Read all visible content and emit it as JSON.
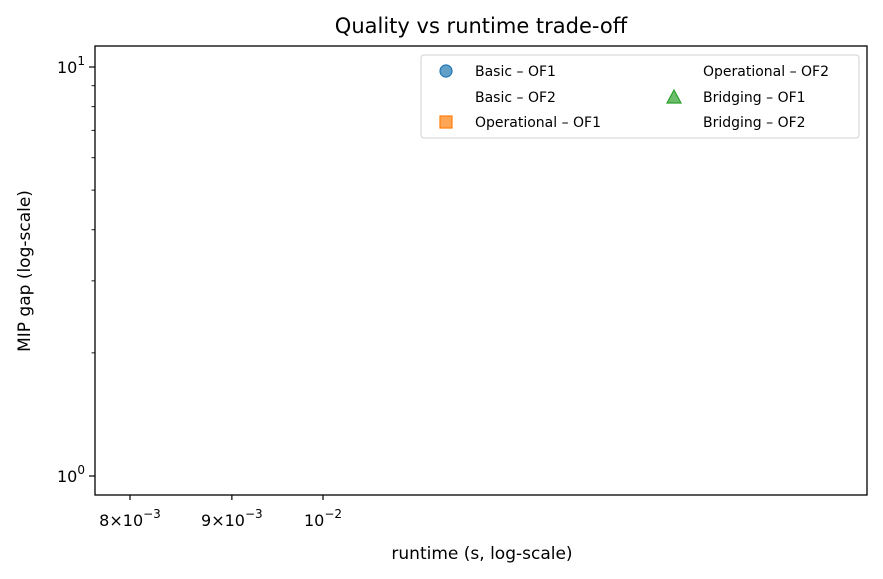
{
  "chart_data": {
    "type": "scatter",
    "title": "Quality vs runtime trade-off",
    "xlabel": "runtime (s, log-scale)",
    "ylabel": "MIP gap (log-scale)",
    "xscale": "log",
    "yscale": "log",
    "grid": false,
    "legend_location": "upper-right",
    "legend_columns": 2,
    "x_ticks": [
      {
        "value": 0.008,
        "mantissa": "8",
        "exponent": "−3"
      },
      {
        "value": 0.009,
        "mantissa": "9",
        "exponent": "−3"
      },
      {
        "value": 0.01,
        "mantissa": "",
        "exponent": "−2"
      }
    ],
    "y_ticks": [
      {
        "value": 1,
        "exponent": "0"
      },
      {
        "value": 10,
        "exponent": "1"
      }
    ],
    "series": [
      {
        "name": "Basic – OF1",
        "marker": "circle",
        "color": "#1f77b4",
        "points": []
      },
      {
        "name": "Basic – OF2",
        "marker": "none",
        "color": "",
        "points": []
      },
      {
        "name": "Operational – OF1",
        "marker": "square",
        "color": "#ff7f0e",
        "points": []
      },
      {
        "name": "Operational – OF2",
        "marker": "none",
        "color": "",
        "points": []
      },
      {
        "name": "Bridging – OF1",
        "marker": "triangle",
        "color": "#2ca02c",
        "points": []
      },
      {
        "name": "Bridging – OF2",
        "marker": "none",
        "color": "",
        "points": []
      }
    ]
  }
}
